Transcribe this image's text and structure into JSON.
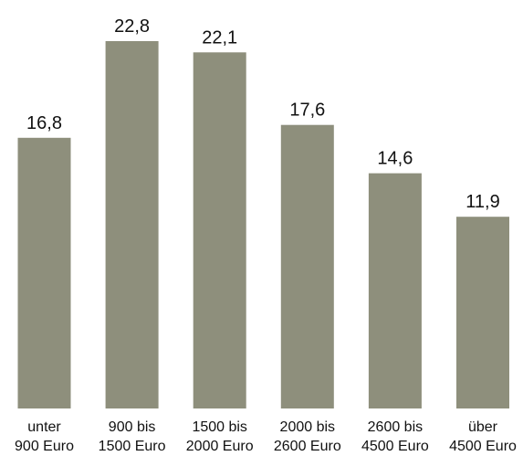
{
  "chart_data": {
    "type": "bar",
    "categories": [
      [
        "unter",
        "900 Euro"
      ],
      [
        "900 bis",
        "1500 Euro"
      ],
      [
        "1500 bis",
        "2000 Euro"
      ],
      [
        "2000 bis",
        "2600 Euro"
      ],
      [
        "2600 bis",
        "4500 Euro"
      ],
      [
        "über",
        "4500 Euro"
      ]
    ],
    "values": [
      16.8,
      22.8,
      22.1,
      17.6,
      14.6,
      11.9
    ],
    "value_labels": [
      "16,8",
      "22,8",
      "22,1",
      "17,6",
      "14,6",
      "11,9"
    ],
    "title": "",
    "xlabel": "",
    "ylabel": "",
    "ylim": [
      0,
      22.8
    ],
    "grid": false,
    "legend": "none",
    "colors": {
      "bar": "#8e8f7c",
      "text": "#111111",
      "background": "#ffffff"
    }
  }
}
